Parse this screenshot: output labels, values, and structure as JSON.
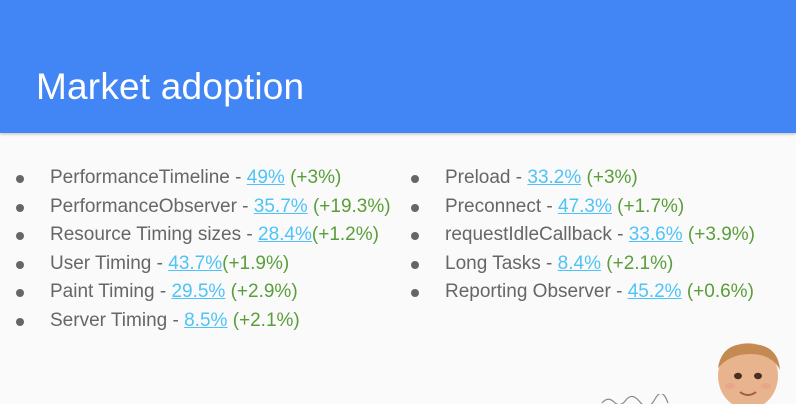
{
  "slide": {
    "title": "Market adoption",
    "left_items": [
      {
        "name": "PerformanceTimeline",
        "sep": " - ",
        "pct": "49%",
        "gap": " ",
        "delta": "(+3%)"
      },
      {
        "name": "PerformanceObserver",
        "sep": " - ",
        "pct": "35.7%",
        "gap": " ",
        "delta": "(+19.3%)"
      },
      {
        "name": "Resource Timing sizes",
        "sep": " - ",
        "pct": "28.4%",
        "gap": "",
        "delta": "(+1.2%)"
      },
      {
        "name": "User Timing",
        "sep": " - ",
        "pct": "43.7%",
        "gap": "",
        "delta": "(+1.9%)"
      },
      {
        "name": "Paint Timing",
        "sep": " - ",
        "pct": "29.5%",
        "gap": " ",
        "delta": "(+2.9%)"
      },
      {
        "name": "Server Timing",
        "sep": " - ",
        "pct": "8.5%",
        "gap": " ",
        "delta": "(+2.1%)"
      }
    ],
    "right_items": [
      {
        "name": "Preload",
        "sep": " - ",
        "pct": "33.2%",
        "gap": " ",
        "delta": "(+3%)"
      },
      {
        "name": "Preconnect",
        "sep": " - ",
        "pct": "47.3%",
        "gap": " ",
        "delta": "(+1.7%)"
      },
      {
        "name": "requestIdleCallback",
        "sep": " - ",
        "pct": "33.6%",
        "gap": " ",
        "delta": "(+3.9%)"
      },
      {
        "name": "Long Tasks",
        "sep": " - ",
        "pct": "8.4%",
        "gap": " ",
        "delta": "(+2.1%)"
      },
      {
        "name": "Reporting Observer",
        "sep": " - ",
        "pct": "45.2%",
        "gap": " ",
        "delta": "(+0.6%)"
      }
    ],
    "colors": {
      "header": "#4285f4",
      "text": "#666666",
      "link": "#4fc3f7",
      "delta": "#5a9e3a"
    },
    "decoration_icon": "baby-photo-icon"
  }
}
